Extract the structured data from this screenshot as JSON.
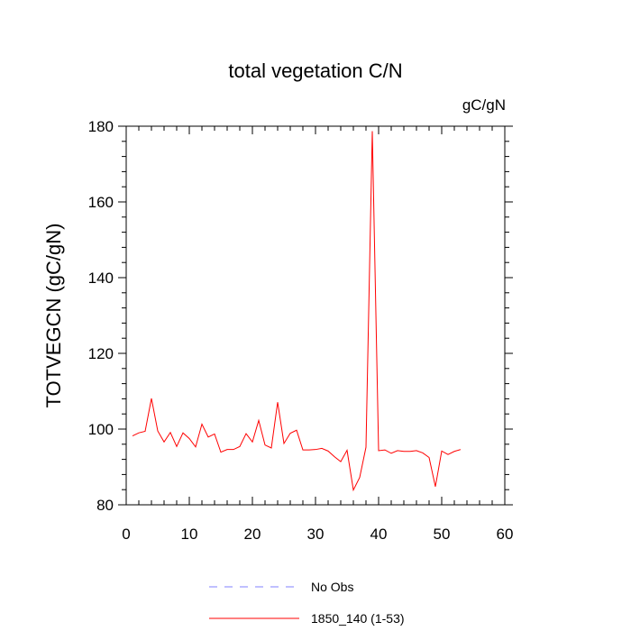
{
  "chart_data": {
    "type": "line",
    "title": "total vegetation C/N",
    "units": "gC/gN",
    "ylabel": "TOTVEGCN  (gC/gN)",
    "xlabel": "",
    "xlim": [
      0,
      60
    ],
    "ylim": [
      80,
      180
    ],
    "xticks": [
      0,
      10,
      20,
      30,
      40,
      50,
      60
    ],
    "yticks": [
      80,
      100,
      120,
      140,
      160,
      180
    ],
    "grid": false,
    "legend_position": "bottom",
    "series": [
      {
        "name": "No Obs",
        "color": "#8080ff",
        "dash": "dashed",
        "x": [],
        "y": []
      },
      {
        "name": "1850_140 (1-53)",
        "color": "#ff0000",
        "dash": "solid",
        "x": [
          1,
          2,
          3,
          4,
          5,
          6,
          7,
          8,
          9,
          10,
          11,
          12,
          13,
          14,
          15,
          16,
          17,
          18,
          19,
          20,
          21,
          22,
          23,
          24,
          25,
          26,
          27,
          28,
          29,
          30,
          31,
          32,
          33,
          34,
          35,
          36,
          37,
          38,
          39,
          40,
          41,
          42,
          43,
          44,
          45,
          46,
          47,
          48,
          49,
          50,
          51,
          52,
          53
        ],
        "y": [
          98.2,
          99.0,
          99.4,
          108.1,
          99.5,
          96.6,
          99.1,
          95.4,
          99.0,
          97.5,
          95.3,
          101.3,
          97.9,
          98.7,
          93.9,
          94.6,
          94.6,
          95.4,
          98.8,
          96.6,
          102.3,
          95.8,
          95.0,
          107.1,
          96.2,
          98.9,
          99.7,
          94.5,
          94.5,
          94.6,
          94.9,
          94.2,
          92.7,
          91.4,
          94.4,
          83.9,
          87.2,
          95.2,
          178.7,
          94.3,
          94.5,
          93.6,
          94.3,
          94.1,
          94.1,
          94.3,
          93.7,
          92.5,
          84.8,
          94.2,
          93.3,
          94.1,
          94.6
        ]
      }
    ]
  }
}
